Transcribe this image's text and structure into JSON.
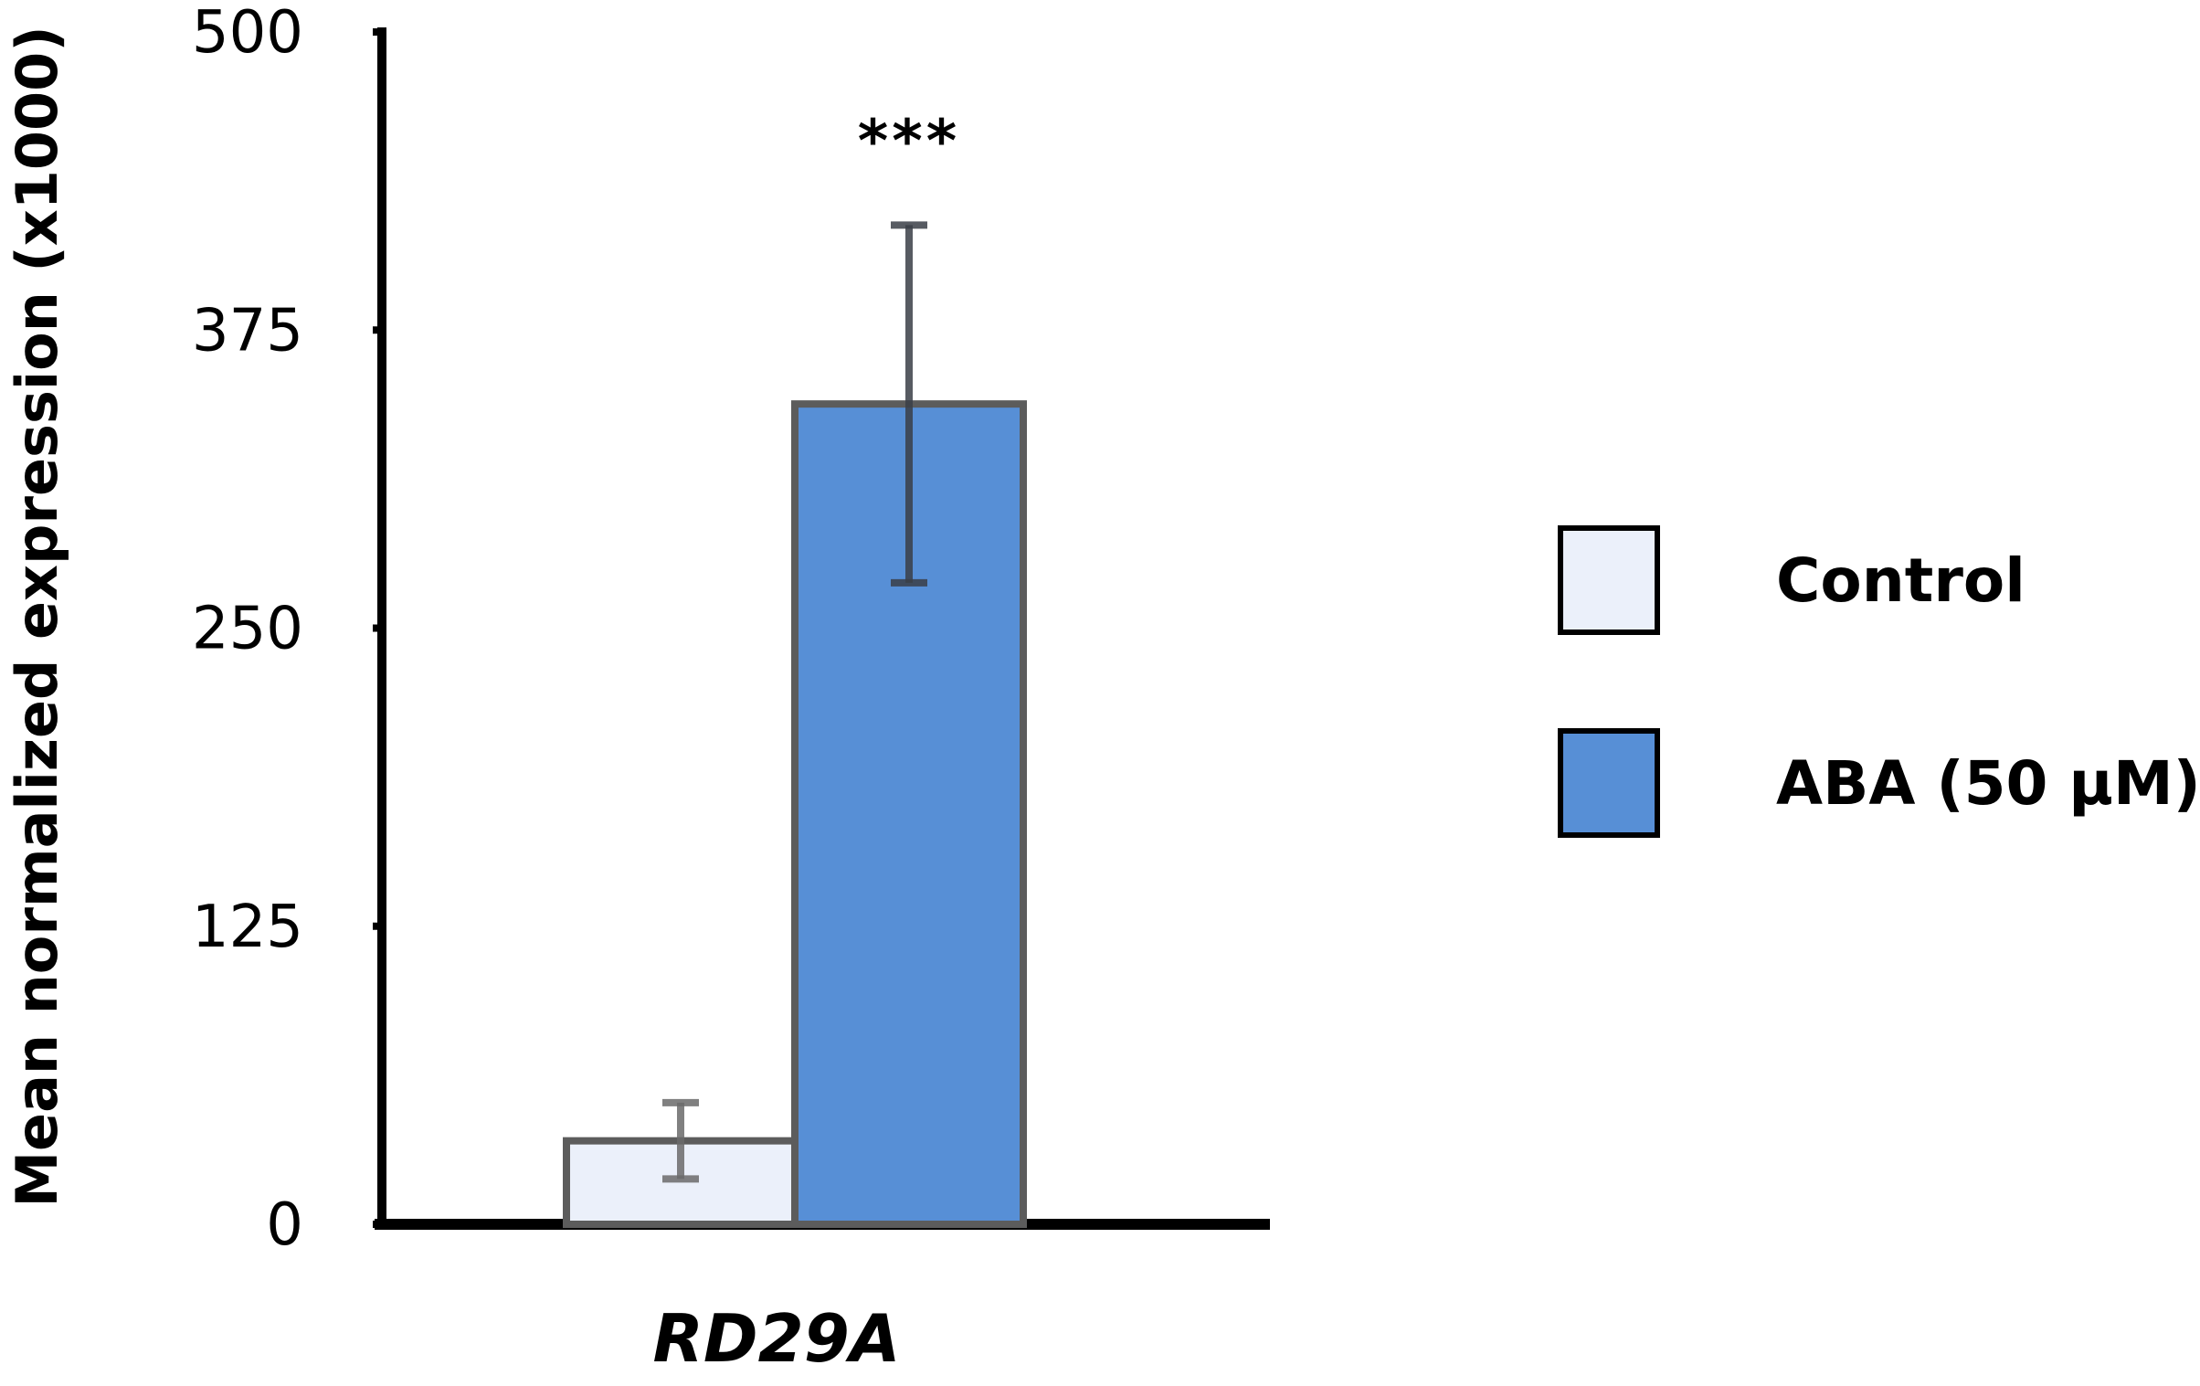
{
  "chart_data": {
    "type": "bar",
    "title": "",
    "xlabel": "",
    "ylabel": "Mean normalized expression (x1000)",
    "ylim": [
      0,
      500
    ],
    "yticks": [
      "0",
      "125",
      "250",
      "375",
      "500"
    ],
    "categories": [
      "RD29A"
    ],
    "series": [
      {
        "name": "Control",
        "values": [
          35
        ],
        "error": [
          16
        ],
        "color": "#ebf0fa"
      },
      {
        "name": "ABA (50 μM)",
        "values": [
          344
        ],
        "error": [
          75
        ],
        "color": "#578fd6"
      }
    ],
    "annotations": [
      {
        "series": "ABA (50 μM)",
        "category": "RD29A",
        "text": "***"
      }
    ],
    "grid": false,
    "legend": "right"
  }
}
